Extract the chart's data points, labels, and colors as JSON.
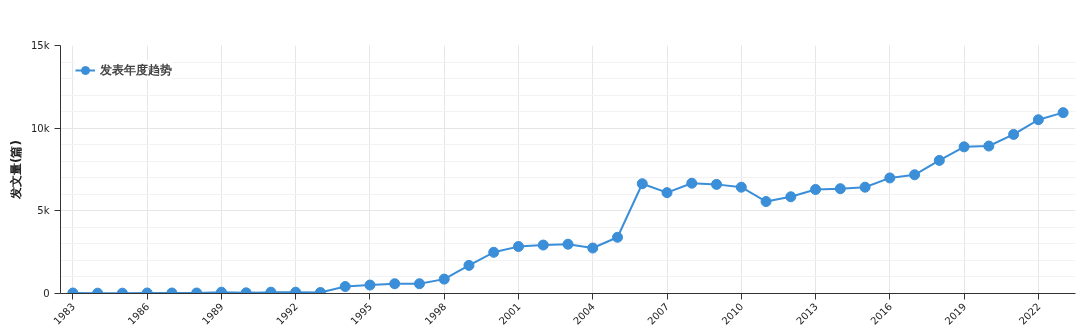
{
  "chart_data": {
    "type": "line",
    "ylabel": "发文量(篇)",
    "x": [
      1983,
      1984,
      1985,
      1986,
      1987,
      1988,
      1989,
      1990,
      1991,
      1992,
      1993,
      1994,
      1995,
      1996,
      1997,
      1998,
      1999,
      2000,
      2001,
      2002,
      2003,
      2004,
      2005,
      2006,
      2007,
      2008,
      2009,
      2010,
      2011,
      2012,
      2013,
      2014,
      2015,
      2016,
      2017,
      2018,
      2019,
      2020,
      2021,
      2022,
      2023
    ],
    "series": [
      {
        "name": "发表年度趋势",
        "color": "#3b8ed8",
        "values": [
          30,
          20,
          20,
          30,
          30,
          30,
          80,
          40,
          80,
          80,
          60,
          420,
          510,
          590,
          590,
          870,
          1700,
          2490,
          2840,
          2930,
          2980,
          2750,
          3400,
          6640,
          6100,
          6670,
          6600,
          6430,
          5560,
          5850,
          6290,
          6340,
          6430,
          6990,
          7180,
          8050,
          8870,
          8920,
          9620,
          10510,
          10940
        ]
      }
    ],
    "xlim": [
      1982.5,
      2023.5
    ],
    "xticks": [
      1983,
      1986,
      1989,
      1992,
      1995,
      1998,
      2001,
      2004,
      2007,
      2010,
      2013,
      2016,
      2019,
      2022
    ],
    "ylim": [
      0,
      15000
    ],
    "yticks": [
      0,
      {
        "value": 5000,
        "label": "5k"
      },
      {
        "value": 10000,
        "label": "10k"
      },
      {
        "value": 15000,
        "label": "15k"
      }
    ],
    "grid": true,
    "legend": "top left",
    "marker": "circle",
    "line_style": "solid"
  }
}
